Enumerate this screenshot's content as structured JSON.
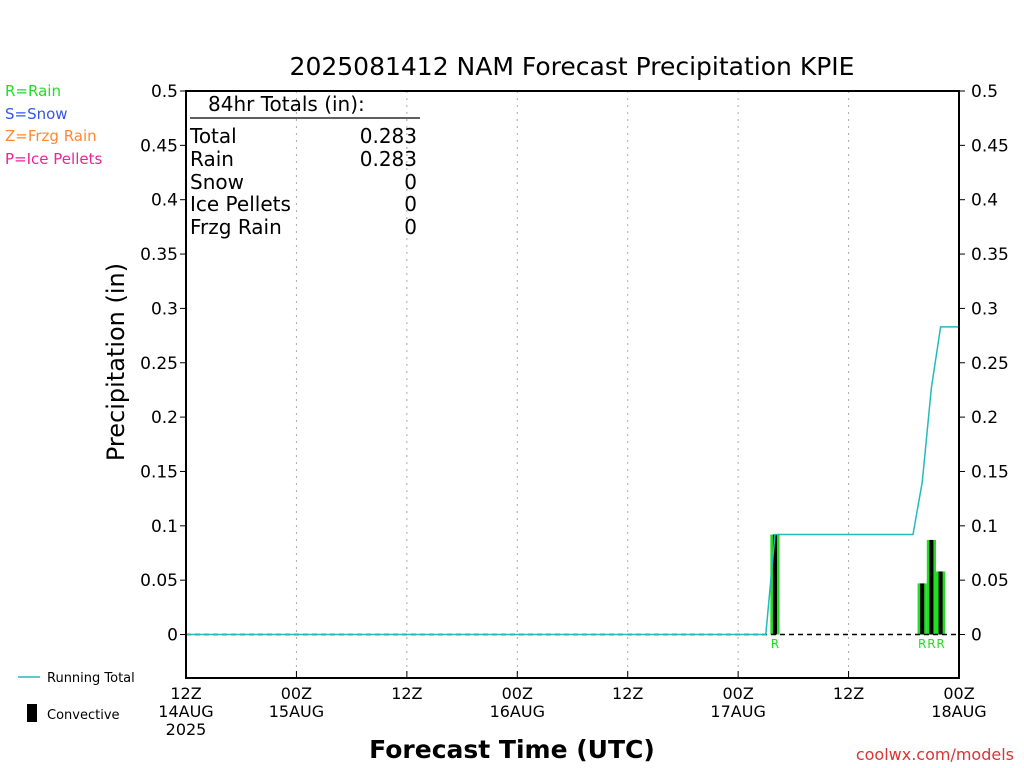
{
  "title": "2025081412 NAM Forecast Precipitation KPIE",
  "xlabel": "Forecast Time (UTC)",
  "ylabel": "Precipitation (in)",
  "legend_types": [
    {
      "label": "R=Rain",
      "color": "#22dd22"
    },
    {
      "label": "S=Snow",
      "color": "#3355ee"
    },
    {
      "label": "Z=Frzg Rain",
      "color": "#ff8833"
    },
    {
      "label": "P=Ice Pellets",
      "color": "#ee2299"
    }
  ],
  "legend_lines": {
    "running_total": "Running Total",
    "convective": "Convective"
  },
  "totals": {
    "header": "84hr Totals (in):",
    "rows": [
      {
        "label": "Total",
        "value": "0.283"
      },
      {
        "label": "Rain",
        "value": "0.283"
      },
      {
        "label": "Snow",
        "value": "0"
      },
      {
        "label": "Ice Pellets",
        "value": "0"
      },
      {
        "label": "Frzg Rain",
        "value": "0"
      }
    ]
  },
  "credit": "coolwx.com/models",
  "colors": {
    "running_total": "#22bbbb",
    "rain": "#22dd22",
    "convective": "#000000",
    "grid": "#aaaaaa"
  },
  "chart_data": {
    "type": "bar",
    "title": "2025081412 NAM Forecast Precipitation KPIE",
    "xlabel": "Forecast Time (UTC)",
    "ylabel": "Precipitation (in)",
    "ylim": [
      -0.04,
      0.5
    ],
    "y_ticks": [
      "0",
      "0.05",
      "0.1",
      "0.15",
      "0.2",
      "0.25",
      "0.3",
      "0.35",
      "0.4",
      "0.45",
      "0.5"
    ],
    "x_units": "forecast hour",
    "xlim": [
      0,
      84
    ],
    "x_ticks": [
      {
        "hour": 0,
        "lines": [
          "12Z",
          "14AUG",
          "2025"
        ]
      },
      {
        "hour": 12,
        "lines": [
          "00Z",
          "15AUG"
        ]
      },
      {
        "hour": 24,
        "lines": [
          "12Z"
        ]
      },
      {
        "hour": 36,
        "lines": [
          "00Z",
          "16AUG"
        ]
      },
      {
        "hour": 48,
        "lines": [
          "12Z"
        ]
      },
      {
        "hour": 60,
        "lines": [
          "00Z",
          "17AUG"
        ]
      },
      {
        "hour": 72,
        "lines": [
          "12Z"
        ]
      },
      {
        "hour": 84,
        "lines": [
          "00Z",
          "18AUG"
        ]
      }
    ],
    "grid": true,
    "precip_bars": [
      {
        "hour": 64,
        "value": 0.092,
        "type": "R",
        "convective": 0.092
      },
      {
        "hour": 80,
        "value": 0.047,
        "type": "R",
        "convective": 0.047
      },
      {
        "hour": 81,
        "value": 0.087,
        "type": "R",
        "convective": 0.087
      },
      {
        "hour": 82,
        "value": 0.058,
        "type": "R",
        "convective": 0.058
      }
    ],
    "running_total": {
      "name": "Running Total",
      "points": [
        [
          0,
          0
        ],
        [
          63,
          0
        ],
        [
          64,
          0.092
        ],
        [
          79,
          0.092
        ],
        [
          80,
          0.14
        ],
        [
          81,
          0.227
        ],
        [
          82,
          0.283
        ],
        [
          84,
          0.283
        ]
      ]
    }
  }
}
